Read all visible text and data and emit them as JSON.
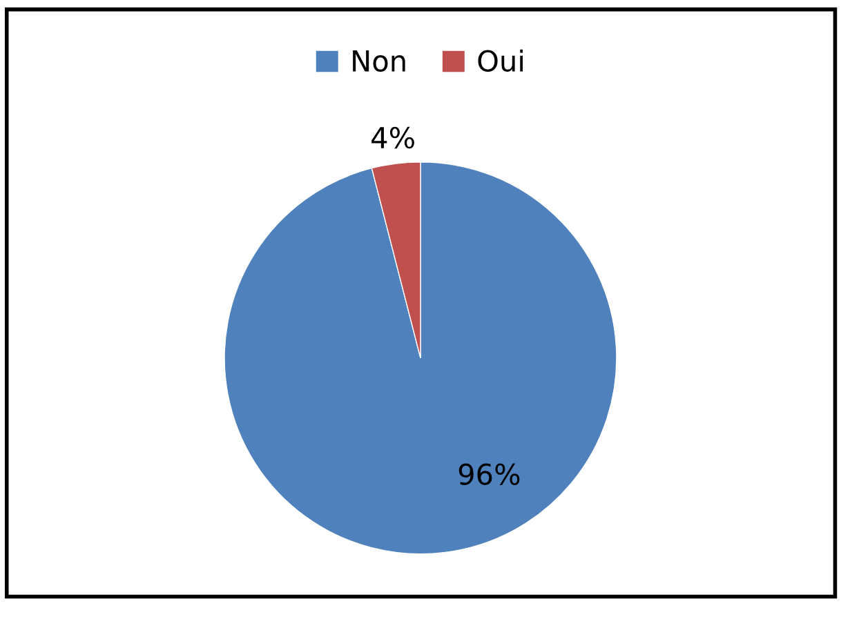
{
  "chart_data": {
    "type": "pie",
    "categories": [
      "Non",
      "Oui"
    ],
    "values": [
      96,
      4
    ],
    "colors": [
      "#4f81bd",
      "#c0504d"
    ],
    "value_labels": [
      "96%",
      "4%"
    ],
    "legend": "top"
  }
}
